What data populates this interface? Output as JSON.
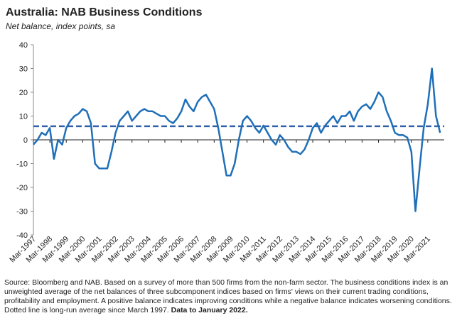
{
  "chart_data": {
    "type": "line",
    "title": "Australia: NAB Business Conditions",
    "subtitle": "Net balance, index points, sa",
    "categories": [
      "Mar-1997",
      null,
      null,
      null,
      "Mar-1998",
      null,
      null,
      null,
      "Mar-1999",
      null,
      null,
      null,
      "Mar-2000",
      null,
      null,
      null,
      "Mar-2001",
      null,
      null,
      null,
      "Mar-2002",
      null,
      null,
      null,
      "Mar-2003",
      null,
      null,
      null,
      "Mar-2004",
      null,
      null,
      null,
      "Mar-2005",
      null,
      null,
      null,
      "Mar-2006",
      null,
      null,
      null,
      "Mar-2007",
      null,
      null,
      null,
      "Mar-2008",
      null,
      null,
      null,
      "Mar-2009",
      null,
      null,
      null,
      "Mar-2010",
      null,
      null,
      null,
      "Mar-2011",
      null,
      null,
      null,
      "Mar-2012",
      null,
      null,
      null,
      "Mar-2013",
      null,
      null,
      null,
      "Mar-2014",
      null,
      null,
      null,
      "Mar-2015",
      null,
      null,
      null,
      "Mar-2016",
      null,
      null,
      null,
      "Mar-2017",
      null,
      null,
      null,
      "Mar-2018",
      null,
      null,
      null,
      "Mar-2019",
      null,
      null,
      null,
      "Mar-2020",
      null,
      null,
      null,
      "Mar-2021",
      null,
      null,
      null
    ],
    "series": [
      {
        "color": "#1f6fb8",
        "values": [
          -2,
          0,
          3,
          2,
          5,
          -8,
          0,
          -2,
          5,
          8,
          10,
          11,
          13,
          12,
          7,
          -10,
          -12,
          -12,
          -12,
          -5,
          3,
          8,
          10,
          12,
          8,
          10,
          12,
          13,
          12,
          12,
          11,
          10,
          10,
          8,
          7,
          9,
          12,
          17,
          14,
          12,
          16,
          18,
          19,
          16,
          13,
          5,
          -5,
          -15,
          -15,
          -10,
          0,
          8,
          10,
          8,
          5,
          3,
          6,
          3,
          0,
          -2,
          2,
          0,
          -3,
          -5,
          -5,
          -6,
          -4,
          0,
          5,
          7,
          3,
          6,
          8,
          10,
          7,
          10,
          10,
          12,
          8,
          12,
          14,
          15,
          13,
          16,
          20,
          18,
          12,
          8,
          3,
          2,
          2,
          1,
          -5,
          -30,
          -12,
          5,
          15,
          30,
          10,
          3
        ]
      }
    ],
    "average": 5.7,
    "average_color": "#2e5fa8",
    "ylim": [
      -40,
      40
    ],
    "yticks": [
      -40,
      -30,
      -20,
      -10,
      0,
      10,
      20,
      30,
      40
    ],
    "grid": false,
    "source": "Source: Bloomberg and NAB. Based on a survey of more than 500 firms from the non-farm sector.  The business conditions index is  an unweighted average of the net balances of three subcomponent indices based on firms' views on their current trading conditions, profitability and employment. A positive balance indicates improving conditions while a negative balance indicates worsening conditions.  Dotted line is long-run average since March 1997.",
    "note": "Data to January 2022."
  }
}
